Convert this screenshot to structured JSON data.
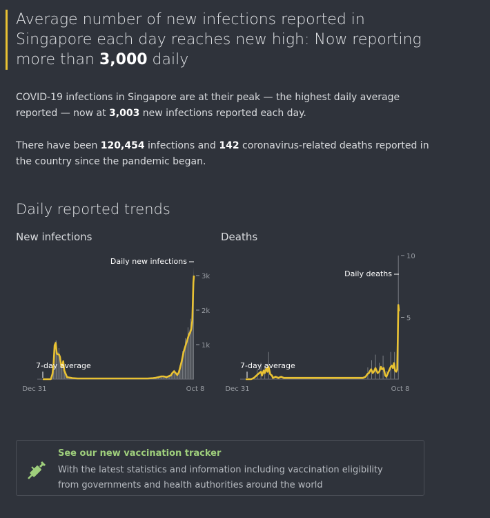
{
  "headline": {
    "text_before": "Average number of new infections reported in Singapore each day reaches new high: Now reporting more than ",
    "highlight": "3,000",
    "text_after": " daily"
  },
  "intro": {
    "p1_before": "COVID-19 infections in Singapore are at their peak — the highest daily average reported — now at ",
    "p1_value": "3,003",
    "p1_after": " new infections reported each day.",
    "p2_before": "There have been ",
    "p2_infections": "120,454",
    "p2_middle": " infections and ",
    "p2_deaths": "142",
    "p2_after": " coronavirus-related deaths reported in the country since the pandemic began."
  },
  "section_title": "Daily reported trends",
  "colors": {
    "accent": "#e9c233",
    "bars": "#7a7d83",
    "area": "#55595f",
    "green": "#9fcf7c"
  },
  "chart_data": [
    {
      "type": "area",
      "title": "New infections",
      "x_start_label": "Dec 31",
      "x_end_label": "Oct 8",
      "ylim": [
        0,
        3000
      ],
      "y_ticks": [
        1000,
        2000,
        3000
      ],
      "y_tick_labels": [
        "1k",
        "2k",
        "3k"
      ],
      "annotation_daily": "Daily new infections",
      "annotation_average": "7-day average",
      "series": [
        {
          "x": [
            0,
            5,
            10,
            15,
            18,
            20,
            22,
            24,
            26,
            28,
            30,
            32,
            34,
            36,
            38,
            40,
            45,
            55,
            65,
            75,
            85,
            95,
            105,
            115,
            125,
            135,
            145,
            155,
            165,
            175,
            185,
            195,
            205,
            210,
            215,
            220,
            225,
            230,
            235,
            238,
            241,
            244,
            247,
            250,
            253,
            256,
            258,
            260,
            262,
            264,
            266,
            268,
            270,
            272,
            274,
            276,
            278,
            280,
            281
          ],
          "y": [
            0,
            0,
            0,
            2,
            150,
            420,
            980,
            1050,
            740,
            720,
            720,
            640,
            400,
            360,
            520,
            250,
            60,
            30,
            20,
            20,
            20,
            20,
            20,
            20,
            20,
            20,
            20,
            20,
            20,
            20,
            20,
            20,
            30,
            40,
            60,
            80,
            80,
            60,
            90,
            110,
            180,
            230,
            180,
            120,
            200,
            380,
            500,
            650,
            800,
            900,
            1000,
            1100,
            1200,
            1300,
            1350,
            1450,
            1700,
            2800,
            3000
          ]
        }
      ]
    },
    {
      "type": "line",
      "title": "Deaths",
      "x_start_label": "Dec 31",
      "x_end_label": "Oct 8",
      "ylim": [
        0,
        10
      ],
      "y_ticks": [
        5,
        10
      ],
      "y_tick_labels": [
        "5",
        "10"
      ],
      "annotation_daily": "Daily deaths",
      "annotation_average": "7-day average",
      "series": [
        {
          "x": [
            0,
            10,
            15,
            20,
            25,
            28,
            30,
            33,
            35,
            38,
            40,
            42,
            45,
            48,
            50,
            55,
            60,
            65,
            70,
            75,
            80,
            90,
            100,
            110,
            120,
            130,
            140,
            150,
            160,
            170,
            180,
            190,
            200,
            210,
            215,
            220,
            223,
            226,
            230,
            233,
            235,
            238,
            240,
            242,
            245,
            248,
            250,
            253,
            256,
            258,
            260,
            262,
            264,
            266,
            268,
            270,
            272,
            274,
            276,
            278,
            280,
            281
          ],
          "y": [
            0,
            0,
            0.1,
            0.3,
            0.5,
            0.6,
            0.3,
            0.7,
            0.5,
            0.9,
            0.6,
            1.0,
            0.4,
            0.3,
            0.1,
            0.2,
            0.1,
            0.2,
            0.1,
            0.1,
            0.1,
            0.1,
            0.1,
            0.1,
            0.1,
            0.1,
            0.1,
            0.1,
            0.1,
            0.1,
            0.1,
            0.1,
            0.1,
            0.1,
            0.1,
            0.2,
            0.4,
            0.5,
            0.8,
            0.5,
            0.6,
            0.9,
            0.7,
            0.5,
            0.6,
            1.0,
            0.8,
            0.9,
            0.3,
            0.2,
            0.4,
            0.6,
            0.8,
            1.0,
            1.1,
            0.9,
            1.3,
            0.7,
            0.6,
            0.8,
            6.0,
            5.5
          ]
        }
      ]
    }
  ],
  "tracker": {
    "title": "See our new vaccination tracker",
    "text": "With the latest statistics and information including vaccination eligibility from governments and health authorities around the world"
  }
}
